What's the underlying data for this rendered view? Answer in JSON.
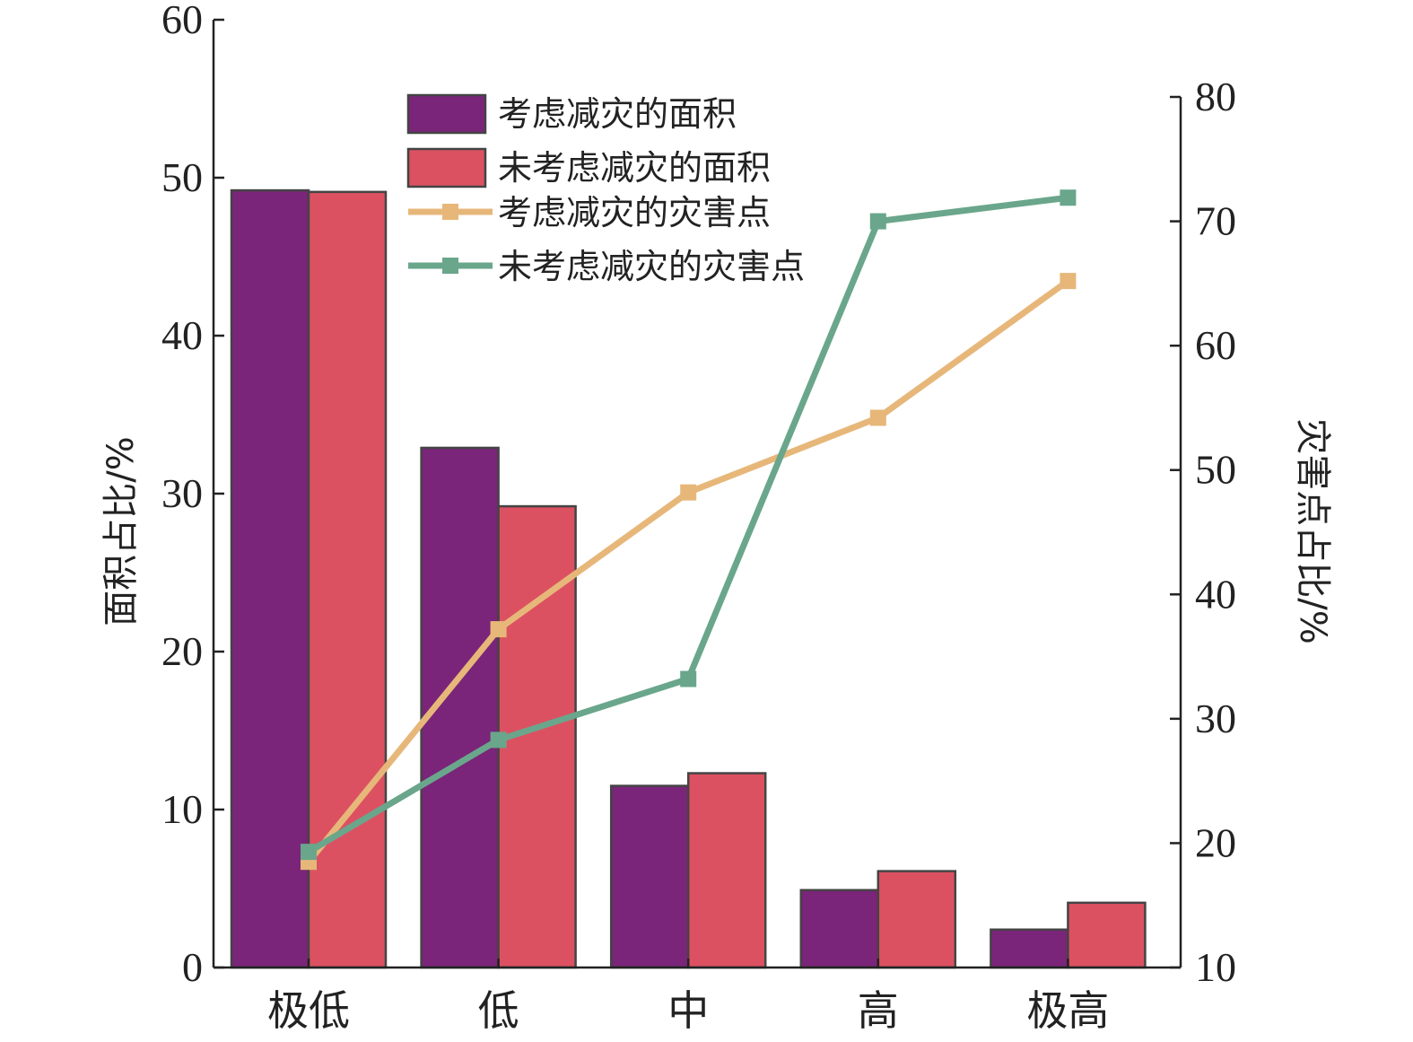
{
  "chart_data": {
    "type": "bar",
    "categories": [
      "极低",
      "低",
      "中",
      "高",
      "极高"
    ],
    "y_left": {
      "label": "面积占比/%",
      "lim": [
        0,
        60
      ],
      "ticks": [
        0,
        10,
        20,
        30,
        40,
        50,
        60
      ]
    },
    "y_right": {
      "label": "灾害点占比/%",
      "lim": [
        10,
        80
      ],
      "ticks": [
        10,
        20,
        30,
        40,
        50,
        60,
        70,
        80
      ]
    },
    "bar_series": [
      {
        "name": "考虑减灾的面积",
        "color": "#7a2579",
        "values": [
          49.2,
          32.9,
          11.5,
          4.9,
          2.4
        ]
      },
      {
        "name": "未考虑减灾的面积",
        "color": "#dc5161",
        "values": [
          49.1,
          29.2,
          12.3,
          6.1,
          4.1
        ]
      }
    ],
    "line_series": [
      {
        "name": "考虑减灾的灾害点",
        "color": "#e7b77a",
        "axis": "right",
        "values": [
          18.5,
          37.2,
          48.2,
          54.2,
          65.2
        ]
      },
      {
        "name": "未考虑减灾的灾害点",
        "color": "#6aa68b",
        "axis": "right",
        "values": [
          19.3,
          28.3,
          33.2,
          70.0,
          71.9
        ]
      }
    ],
    "legend_position": "top-center",
    "grid": false
  }
}
